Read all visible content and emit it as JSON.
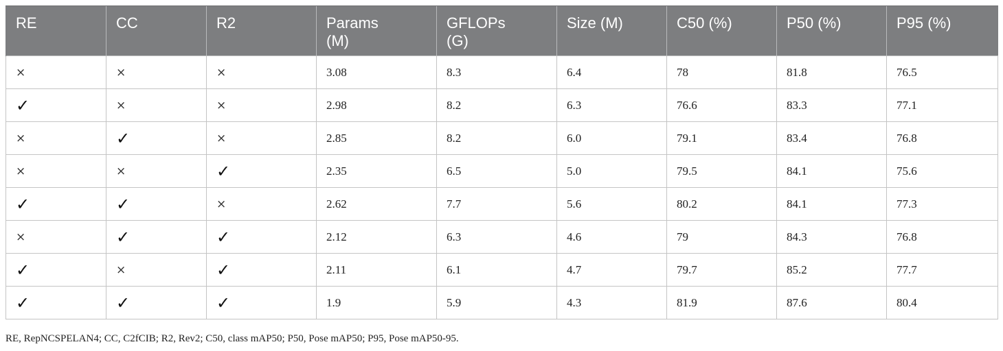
{
  "table": {
    "headers": [
      "RE",
      "CC",
      "R2",
      "Params (M)",
      "GFLOPs (G)",
      "Size (M)",
      "C50 (%)",
      "P50 (%)",
      "P95 (%)"
    ],
    "rows": [
      [
        "×",
        "×",
        "×",
        "3.08",
        "8.3",
        "6.4",
        "78",
        "81.8",
        "76.5"
      ],
      [
        "✓",
        "×",
        "×",
        "2.98",
        "8.2",
        "6.3",
        "76.6",
        "83.3",
        "77.1"
      ],
      [
        "×",
        "✓",
        "×",
        "2.85",
        "8.2",
        "6.0",
        "79.1",
        "83.4",
        "76.8"
      ],
      [
        "×",
        "×",
        "✓",
        "2.35",
        "6.5",
        "5.0",
        "79.5",
        "84.1",
        "75.6"
      ],
      [
        "✓",
        "✓",
        "×",
        "2.62",
        "7.7",
        "5.6",
        "80.2",
        "84.1",
        "77.3"
      ],
      [
        "×",
        "✓",
        "✓",
        "2.12",
        "6.3",
        "4.6",
        "79",
        "84.3",
        "76.8"
      ],
      [
        "✓",
        "×",
        "✓",
        "2.11",
        "6.1",
        "4.7",
        "79.7",
        "85.2",
        "77.7"
      ],
      [
        "✓",
        "✓",
        "✓",
        "1.9",
        "5.9",
        "4.3",
        "81.9",
        "87.6",
        "80.4"
      ]
    ]
  },
  "footnote": "RE, RepNCSPELAN4; CC, C2fCIB; R2, Rev2; C50, class mAP50; P50, Pose mAP50; P95, Pose mAP50-95.",
  "colors": {
    "header_bg": "#7d7e80",
    "header_text": "#ffffff",
    "grid": "#c4c4c4"
  }
}
